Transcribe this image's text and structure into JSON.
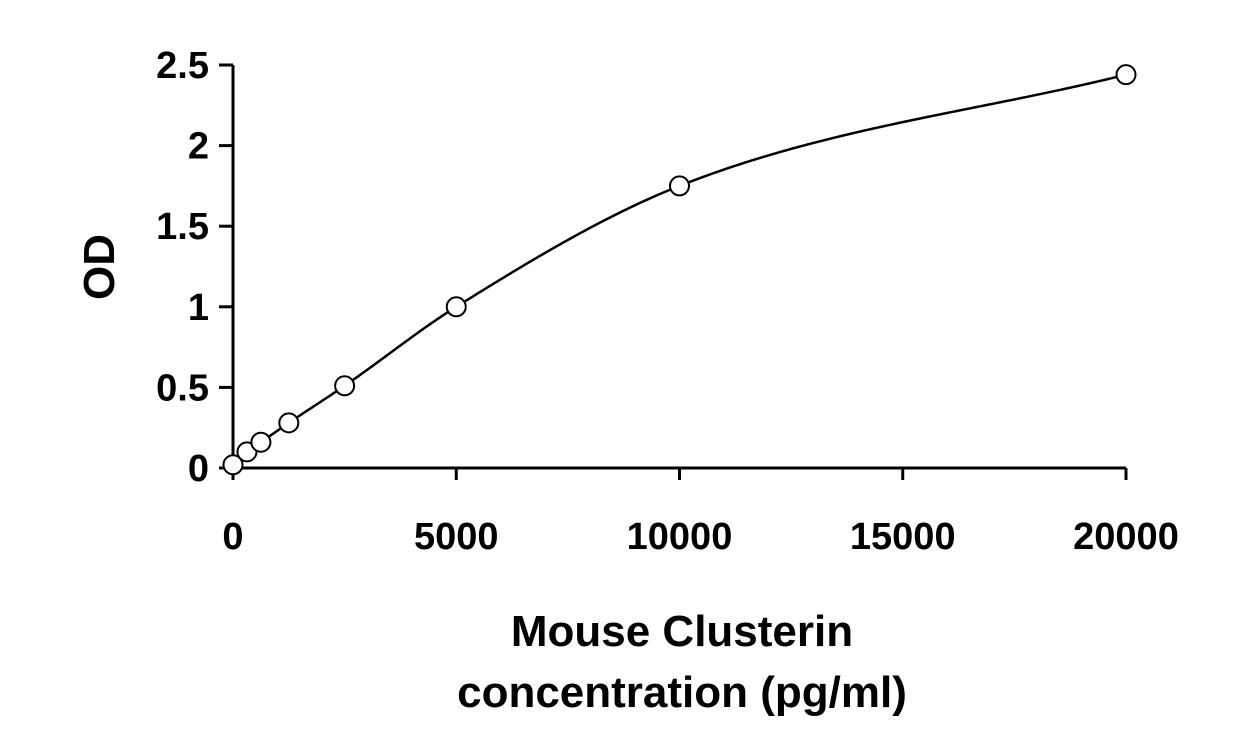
{
  "chart_data": {
    "type": "scatter",
    "title": "",
    "xlabel": "Mouse Clusterin",
    "xlabel_line2": "concentration (pg/ml)",
    "ylabel": "OD",
    "xlim": [
      0,
      20000
    ],
    "ylim": [
      0,
      2.5
    ],
    "x_ticks": [
      0,
      5000,
      10000,
      15000,
      20000
    ],
    "y_ticks": [
      0,
      0.5,
      1,
      1.5,
      2,
      2.5
    ],
    "x_tick_labels": [
      "0",
      "5000",
      "10000",
      "15000",
      "20000"
    ],
    "y_tick_labels": [
      "0",
      "0.5",
      "1",
      "1.5",
      "2",
      "2.5"
    ],
    "grid": false,
    "legend": "none",
    "series": [
      {
        "x": [
          0,
          312.5,
          625,
          1250,
          2500,
          5000,
          10000,
          20000
        ],
        "y": [
          0.02,
          0.1,
          0.16,
          0.28,
          0.51,
          1.0,
          1.75,
          2.44
        ],
        "marker": "open-circle",
        "fit": "smooth-curve"
      }
    ]
  }
}
